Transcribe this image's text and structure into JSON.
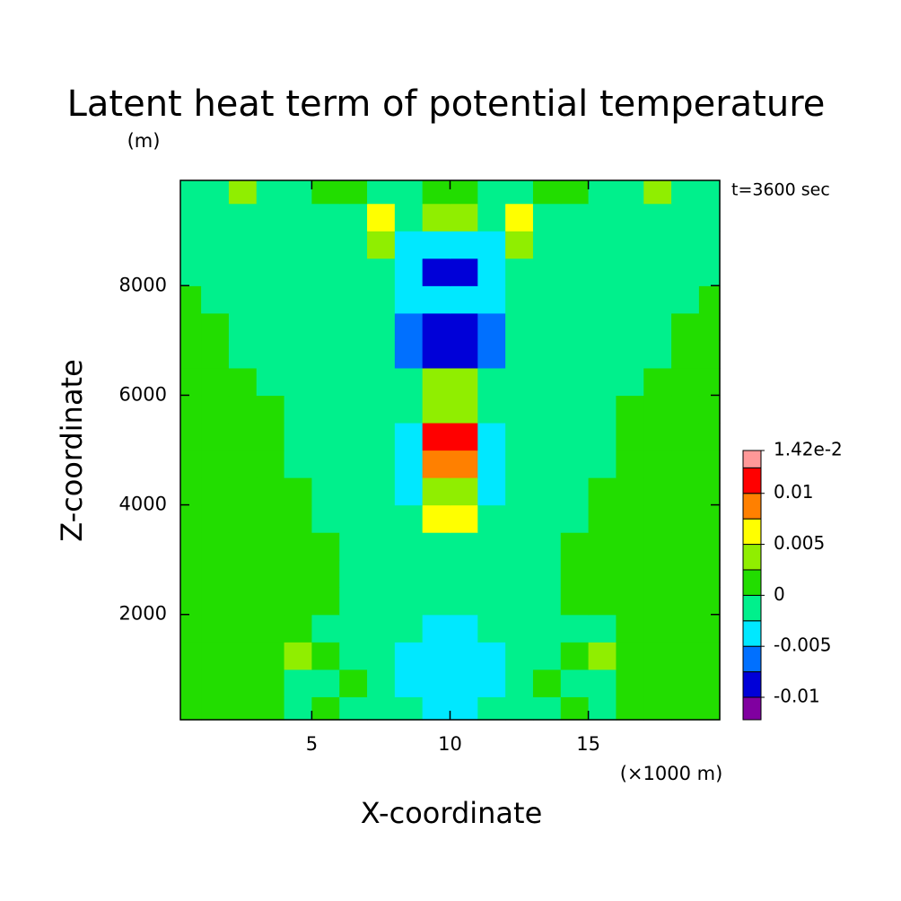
{
  "chart_data": {
    "type": "contourf",
    "title": "Latent heat term of potential temperature",
    "y_unit": "(m)",
    "x_unit": "(×1000 m)",
    "annotation": "t=3600 sec",
    "xlabel": "X-coordinate",
    "ylabel": "Z-coordinate",
    "xlim": [
      0.25,
      19.75
    ],
    "ylim": [
      80,
      9920
    ],
    "xticks": [
      5,
      10,
      15
    ],
    "yticks": [
      2000,
      4000,
      6000,
      8000
    ],
    "x": [
      0.5,
      1.5,
      2.5,
      3.5,
      4.5,
      5.5,
      6.5,
      7.5,
      8.5,
      9.5,
      10.5,
      11.5,
      12.5,
      13.5,
      14.5,
      15.5,
      16.5,
      17.5,
      18.5,
      19.5
    ],
    "y": [
      250,
      750,
      1250,
      1750,
      2250,
      2750,
      3250,
      3750,
      4250,
      4750,
      5250,
      5750,
      6250,
      6750,
      7250,
      7750,
      8250,
      8750,
      9250,
      9750
    ],
    "z": [
      [
        0.001,
        0.001,
        0.001,
        0.001,
        -0.001,
        0.001,
        -0.001,
        -0.001,
        -0.001,
        -0.004,
        -0.004,
        -0.001,
        -0.001,
        -0.001,
        0.001,
        -0.001,
        0.001,
        0.001,
        0.001,
        0.001
      ],
      [
        0.001,
        0.001,
        0.001,
        0.001,
        -0.001,
        -0.001,
        0.001,
        -0.001,
        -0.004,
        -0.004,
        -0.004,
        -0.004,
        -0.001,
        0.001,
        -0.001,
        -0.001,
        0.001,
        0.001,
        0.001,
        0.001
      ],
      [
        0.001,
        0.001,
        0.001,
        0.001,
        0.004,
        0.001,
        -0.001,
        -0.001,
        -0.004,
        -0.004,
        -0.004,
        -0.004,
        -0.001,
        -0.001,
        0.001,
        0.004,
        0.001,
        0.001,
        0.001,
        0.001
      ],
      [
        0.001,
        0.001,
        0.001,
        0.001,
        0.001,
        -0.001,
        -0.001,
        -0.001,
        -0.001,
        -0.004,
        -0.004,
        -0.001,
        -0.001,
        -0.001,
        -0.001,
        -0.001,
        0.001,
        0.001,
        0.001,
        0.001
      ],
      [
        0.001,
        0.001,
        0.001,
        0.001,
        0.001,
        0.001,
        -0.001,
        -0.001,
        -0.001,
        -0.001,
        -0.001,
        -0.001,
        -0.001,
        -0.001,
        0.001,
        0.001,
        0.001,
        0.001,
        0.001,
        0.001
      ],
      [
        0.001,
        0.001,
        0.001,
        0.001,
        0.001,
        0.001,
        -0.001,
        -0.001,
        -0.001,
        -0.001,
        -0.001,
        -0.001,
        -0.001,
        -0.001,
        0.001,
        0.001,
        0.001,
        0.001,
        0.001,
        0.001
      ],
      [
        0.001,
        0.001,
        0.001,
        0.001,
        0.001,
        0.001,
        -0.001,
        -0.001,
        -0.001,
        -0.001,
        -0.001,
        -0.001,
        -0.001,
        -0.001,
        0.001,
        0.001,
        0.001,
        0.001,
        0.001,
        0.001
      ],
      [
        0.001,
        0.001,
        0.001,
        0.001,
        0.001,
        -0.001,
        -0.001,
        -0.001,
        -0.001,
        0.006,
        0.006,
        -0.001,
        -0.001,
        -0.001,
        -0.001,
        0.001,
        0.001,
        0.001,
        0.001,
        0.001
      ],
      [
        0.001,
        0.001,
        0.001,
        0.001,
        0.001,
        -0.001,
        -0.001,
        -0.001,
        -0.004,
        0.004,
        0.004,
        -0.004,
        -0.001,
        -0.001,
        -0.001,
        0.001,
        0.001,
        0.001,
        0.001,
        0.001
      ],
      [
        0.001,
        0.001,
        0.001,
        0.001,
        -0.001,
        -0.001,
        -0.001,
        -0.001,
        -0.004,
        0.009,
        0.009,
        -0.004,
        -0.001,
        -0.001,
        -0.001,
        -0.001,
        0.001,
        0.001,
        0.001,
        0.001
      ],
      [
        0.001,
        0.001,
        0.001,
        0.001,
        -0.001,
        -0.001,
        -0.001,
        -0.001,
        -0.004,
        0.011,
        0.011,
        -0.004,
        -0.001,
        -0.001,
        -0.001,
        -0.001,
        0.001,
        0.001,
        0.001,
        0.001
      ],
      [
        0.001,
        0.001,
        0.001,
        0.001,
        -0.001,
        -0.001,
        -0.001,
        -0.001,
        -0.001,
        0.004,
        0.004,
        -0.001,
        -0.001,
        -0.001,
        -0.001,
        -0.001,
        0.001,
        0.001,
        0.001,
        0.001
      ],
      [
        0.001,
        0.001,
        0.001,
        -0.001,
        -0.001,
        -0.001,
        -0.001,
        -0.001,
        -0.001,
        0.004,
        0.004,
        -0.001,
        -0.001,
        -0.001,
        -0.001,
        -0.001,
        -0.001,
        0.001,
        0.001,
        0.001
      ],
      [
        0.001,
        0.001,
        -0.001,
        -0.001,
        -0.001,
        -0.001,
        -0.001,
        -0.001,
        -0.006,
        -0.009,
        -0.009,
        -0.006,
        -0.001,
        -0.001,
        -0.001,
        -0.001,
        -0.001,
        -0.001,
        0.001,
        0.001
      ],
      [
        0.001,
        0.001,
        -0.001,
        -0.001,
        -0.001,
        -0.001,
        -0.001,
        -0.001,
        -0.006,
        -0.009,
        -0.009,
        -0.006,
        -0.001,
        -0.001,
        -0.001,
        -0.001,
        -0.001,
        -0.001,
        0.001,
        0.001
      ],
      [
        0.001,
        -0.001,
        -0.001,
        -0.001,
        -0.001,
        -0.001,
        -0.001,
        -0.001,
        -0.004,
        -0.004,
        -0.004,
        -0.004,
        -0.001,
        -0.001,
        -0.001,
        -0.001,
        -0.001,
        -0.001,
        -0.001,
        0.001
      ],
      [
        -0.001,
        -0.001,
        -0.001,
        -0.001,
        -0.001,
        -0.001,
        -0.001,
        -0.001,
        -0.004,
        -0.009,
        -0.009,
        -0.004,
        -0.001,
        -0.001,
        -0.001,
        -0.001,
        -0.001,
        -0.001,
        -0.001,
        -0.001
      ],
      [
        -0.001,
        -0.001,
        -0.001,
        -0.001,
        -0.001,
        -0.001,
        -0.001,
        0.004,
        -0.004,
        -0.004,
        -0.004,
        -0.004,
        0.004,
        -0.001,
        -0.001,
        -0.001,
        -0.001,
        -0.001,
        -0.001,
        -0.001
      ],
      [
        -0.001,
        -0.001,
        -0.001,
        -0.001,
        -0.001,
        -0.001,
        -0.001,
        0.006,
        -0.001,
        0.004,
        0.004,
        -0.001,
        0.006,
        -0.001,
        -0.001,
        -0.001,
        -0.001,
        -0.001,
        -0.001,
        -0.001
      ],
      [
        -0.001,
        -0.001,
        0.004,
        -0.001,
        -0.001,
        0.001,
        0.001,
        -0.001,
        -0.001,
        0.001,
        0.001,
        -0.001,
        -0.001,
        0.001,
        0.001,
        -0.001,
        -0.001,
        0.004,
        -0.001,
        -0.001
      ]
    ],
    "levels": [
      -0.0122,
      -0.01,
      -0.0075,
      -0.005,
      -0.0025,
      0,
      0.0025,
      0.005,
      0.0075,
      0.01,
      0.0125,
      0.0142
    ],
    "colors": [
      "#8000a0",
      "#0000d8",
      "#0070ff",
      "#00e8ff",
      "#00f08c",
      "#22dd00",
      "#90ee00",
      "#ffff00",
      "#ff8000",
      "#ff0000",
      "#ff9898"
    ],
    "colorbar_ticks": [
      -0.01,
      -0.005,
      0,
      0.005,
      0.01,
      {
        "value": 0.0142,
        "label": "1.42e-2"
      }
    ]
  }
}
